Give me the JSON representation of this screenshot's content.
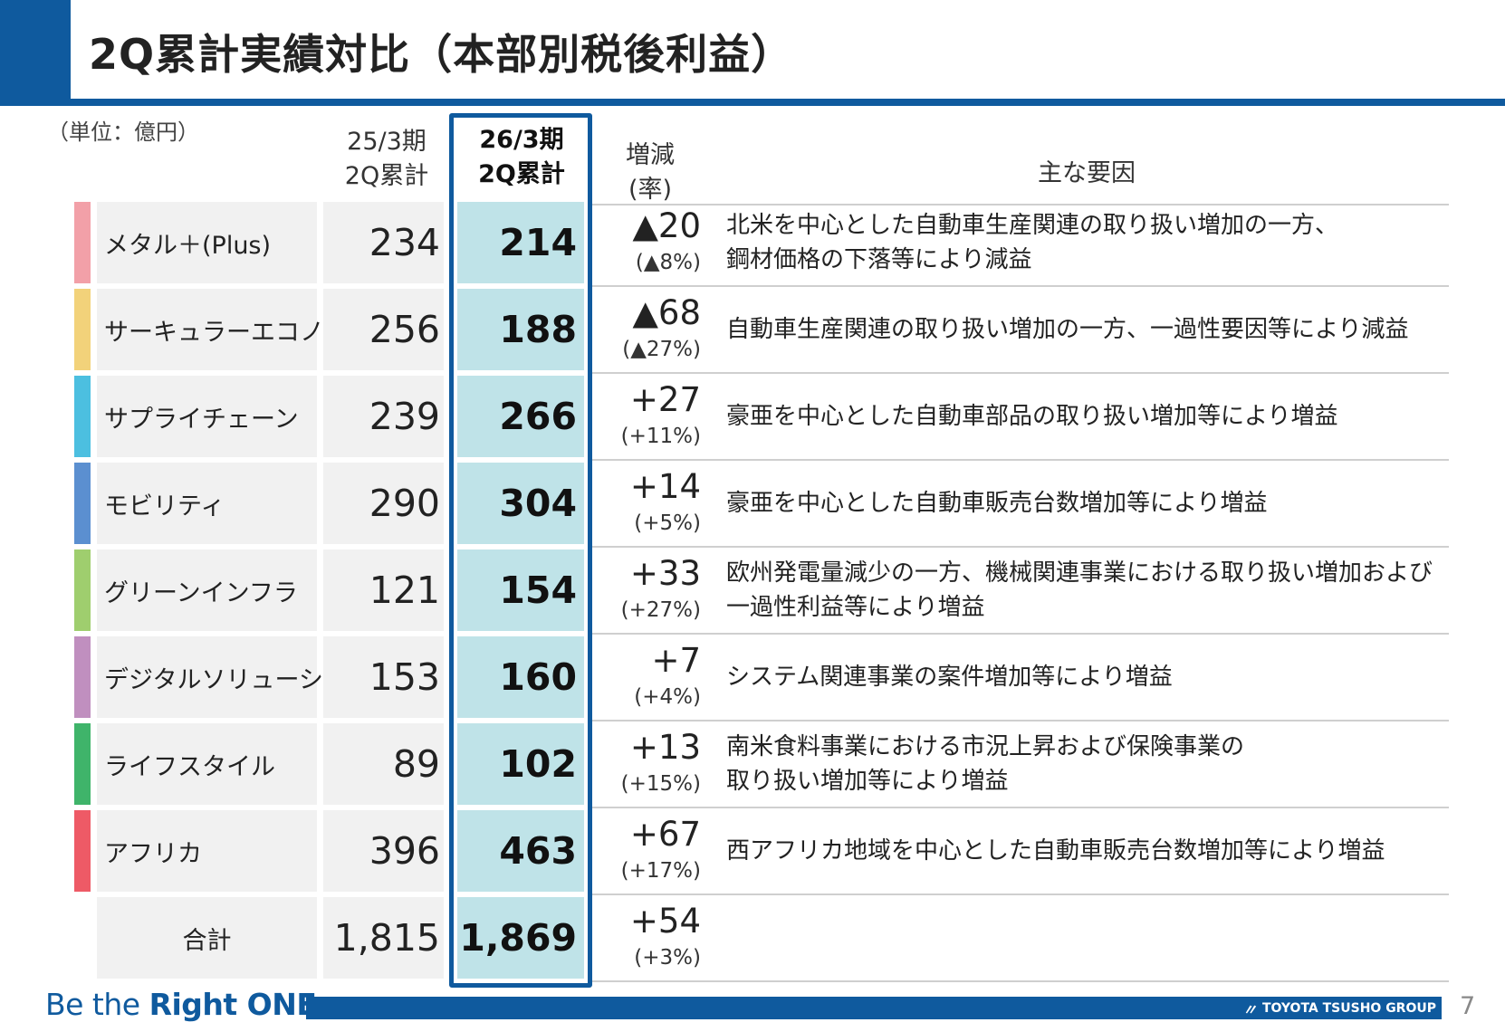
{
  "title": "2Q累計実績対比（本部別税後利益）",
  "unit": "（単位：億円）",
  "headers": {
    "prev_line1": "25/3期",
    "prev_line2": "2Q累計",
    "cur_line1": "26/3期",
    "cur_line2": "2Q累計",
    "diff_line1": "増減",
    "diff_line2": "(率)",
    "reason": "主な要因"
  },
  "rows": [
    {
      "segment": "メタル＋(Plus)",
      "color": "#f2a0a8",
      "prev": "234",
      "cur": "214",
      "diff": "▲20",
      "rate": "(▲8%)",
      "reason": "北米を中心とした自動車生産関連の取り扱い増加の一方、\n鋼材価格の下落等により減益"
    },
    {
      "segment": "サーキュラーエコノミー",
      "color": "#f2d27a",
      "prev": "256",
      "cur": "188",
      "diff": "▲68",
      "rate": "(▲27%)",
      "reason": "自動車生産関連の取り扱い増加の一方、一過性要因等により減益"
    },
    {
      "segment": "サプライチェーン",
      "color": "#4cbfe0",
      "prev": "239",
      "cur": "266",
      "diff": "+27",
      "rate": "(+11%)",
      "reason": "豪亜を中心とした自動車部品の取り扱い増加等により増益"
    },
    {
      "segment": "モビリティ",
      "color": "#5b8fd0",
      "prev": "290",
      "cur": "304",
      "diff": "+14",
      "rate": "(+5%)",
      "reason": "豪亜を中心とした自動車販売台数増加等により増益"
    },
    {
      "segment": "グリーンインフラ",
      "color": "#9fce6e",
      "prev": "121",
      "cur": "154",
      "diff": "+33",
      "rate": "(+27%)",
      "reason": "欧州発電量減少の一方、機械関連事業における取り扱い増加および\n一過性利益等により増益"
    },
    {
      "segment": "デジタルソリューション",
      "color": "#c08fbf",
      "prev": "153",
      "cur": "160",
      "diff": "+7",
      "rate": "(+4%)",
      "reason": "システム関連事業の案件増加等により増益"
    },
    {
      "segment": "ライフスタイル",
      "color": "#3fb46a",
      "prev": "89",
      "cur": "102",
      "diff": "+13",
      "rate": "(+15%)",
      "reason": "南米食料事業における市況上昇および保険事業の\n取り扱い増加等により増益"
    },
    {
      "segment": "アフリカ",
      "color": "#ee5a66",
      "prev": "396",
      "cur": "463",
      "diff": "+67",
      "rate": "(+17%)",
      "reason": "西アフリカ地域を中心とした自動車販売台数増加等により増益"
    }
  ],
  "total": {
    "segment": "合計",
    "prev": "1,815",
    "cur": "1,869",
    "diff": "+54",
    "rate": "(+3%)"
  },
  "footer": {
    "slogan_part1": "Be the ",
    "slogan_part2": "Right ONE",
    "brand": "TOYOTA TSUSHO GROUP",
    "brand_mark": "〃",
    "page_number": "7"
  }
}
